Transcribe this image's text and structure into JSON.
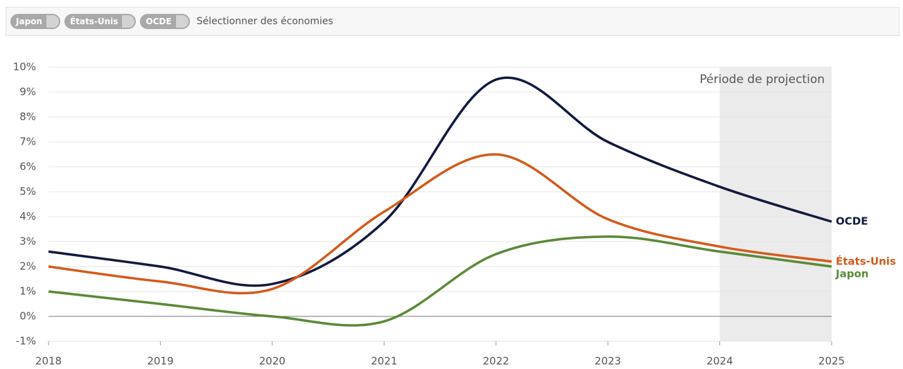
{
  "controls": {
    "chips": [
      "Japon",
      "États-Unis",
      "OCDE"
    ],
    "placeholder": "Sélectionner des économies"
  },
  "chart_data": {
    "type": "line",
    "x": [
      2018,
      2019,
      2020,
      2021,
      2022,
      2023,
      2024,
      2025
    ],
    "xlim": [
      2018,
      2025
    ],
    "xticks": [
      2018,
      2019,
      2020,
      2021,
      2022,
      2023,
      2024,
      2025
    ],
    "ylim": [
      -1,
      10
    ],
    "yticks": [
      {
        "value": -1,
        "label": "-1%"
      },
      {
        "value": 0,
        "label": "0%"
      },
      {
        "value": 1,
        "label": "1%"
      },
      {
        "value": 2,
        "label": "2%"
      },
      {
        "value": 3,
        "label": "3%"
      },
      {
        "value": 4,
        "label": "4%"
      },
      {
        "value": 5,
        "label": "5%"
      },
      {
        "value": 6,
        "label": "6%"
      },
      {
        "value": 7,
        "label": "7%"
      },
      {
        "value": 8,
        "label": "8%"
      },
      {
        "value": 9,
        "label": "9%"
      },
      {
        "value": 10,
        "label": "10%"
      }
    ],
    "grid": true,
    "projection": {
      "label": "Période de projection",
      "start": 2024,
      "end": 2025
    },
    "series": [
      {
        "name": "OCDE",
        "color": "#101a3d",
        "values": [
          2.6,
          2.0,
          1.3,
          3.8,
          9.5,
          7.0,
          5.2,
          3.8
        ]
      },
      {
        "name": "États-Unis",
        "color": "#d45a1c",
        "values": [
          2.0,
          1.4,
          1.1,
          4.2,
          6.5,
          3.9,
          2.8,
          2.2
        ]
      },
      {
        "name": "Japon",
        "color": "#5a8a38",
        "values": [
          1.0,
          0.5,
          0.0,
          -0.2,
          2.5,
          3.2,
          2.6,
          2.0
        ]
      }
    ]
  }
}
